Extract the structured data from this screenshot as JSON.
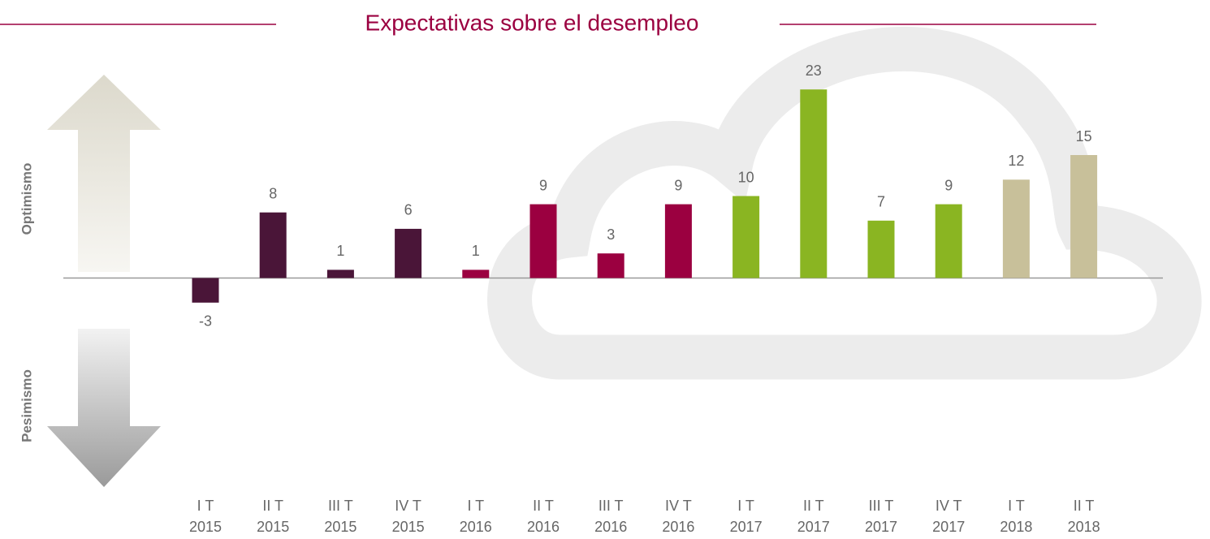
{
  "chart_data": {
    "type": "bar",
    "title": "Expectativas sobre el desempleo",
    "annotations": [
      "Optimismo",
      "Pesimismo"
    ],
    "categories": [
      [
        "I T",
        "2015"
      ],
      [
        "II T",
        "2015"
      ],
      [
        "III T",
        "2015"
      ],
      [
        "IV T",
        "2015"
      ],
      [
        "I T",
        "2016"
      ],
      [
        "II T",
        "2016"
      ],
      [
        "III T",
        "2016"
      ],
      [
        "IV T",
        "2016"
      ],
      [
        "I T",
        "2017"
      ],
      [
        "II T",
        "2017"
      ],
      [
        "III T",
        "2017"
      ],
      [
        "IV T",
        "2017"
      ],
      [
        "I T",
        "2018"
      ],
      [
        "II T",
        "2018"
      ]
    ],
    "values": [
      -3,
      8,
      1,
      6,
      1,
      9,
      3,
      9,
      10,
      23,
      7,
      9,
      12,
      15
    ],
    "colors": [
      "#4a1538",
      "#4a1538",
      "#4a1538",
      "#4a1538",
      "#9b0040",
      "#9b0040",
      "#9b0040",
      "#9b0040",
      "#8ab522",
      "#8ab522",
      "#8ab522",
      "#8ab522",
      "#c8c09a",
      "#c8c09a"
    ],
    "ylim": [
      -25,
      25
    ],
    "grid": false
  }
}
